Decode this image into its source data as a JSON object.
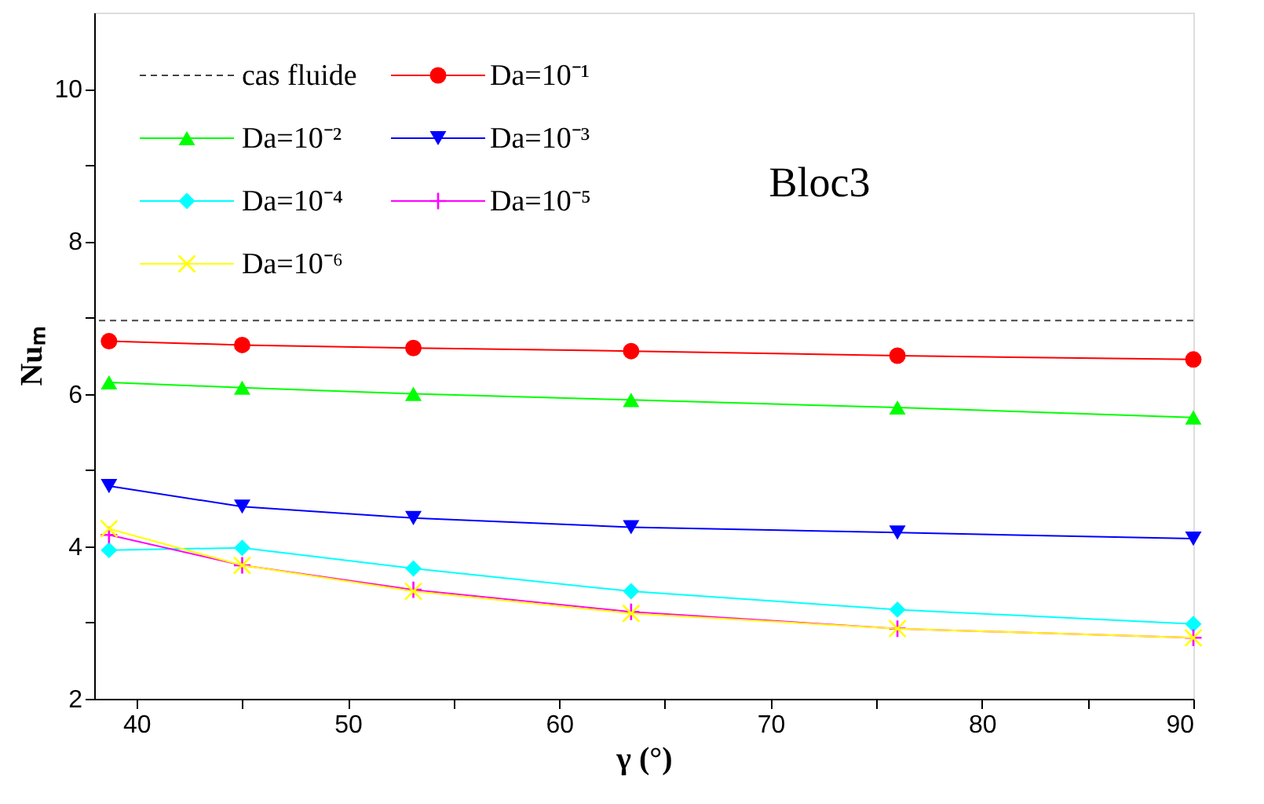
{
  "chart_data": {
    "type": "line",
    "xlabel": "γ (°)",
    "ylabel": "Nuₘ",
    "annotations": [
      "Bloc3"
    ],
    "x": [
      38.7,
      45,
      53.1,
      63.4,
      76,
      90
    ],
    "series": [
      {
        "name": "Da=10⁻¹",
        "color": "#ff0000",
        "marker": "circle",
        "values": [
          6.69,
          6.64,
          6.6,
          6.56,
          6.5,
          6.45
        ]
      },
      {
        "name": "Da=10⁻²",
        "color": "#00ff00",
        "marker": "triangle",
        "values": [
          6.15,
          6.08,
          6.0,
          5.92,
          5.82,
          5.69
        ]
      },
      {
        "name": "Da=10⁻³",
        "color": "#0000ff",
        "marker": "triangle-down",
        "values": [
          4.79,
          4.52,
          4.37,
          4.25,
          4.18,
          4.1
        ]
      },
      {
        "name": "Da=10⁻⁴",
        "color": "#00ffff",
        "marker": "diamond",
        "values": [
          3.95,
          3.98,
          3.71,
          3.41,
          3.17,
          2.98
        ]
      },
      {
        "name": "Da=10⁻⁵",
        "color": "#ff00ff",
        "marker": "cross",
        "values": [
          4.15,
          3.75,
          3.43,
          3.14,
          2.92,
          2.8
        ]
      },
      {
        "name": "Da=10⁻⁶",
        "color": "#ffff00",
        "marker": "x",
        "values": [
          4.23,
          3.75,
          3.41,
          3.12,
          2.92,
          2.8
        ]
      }
    ],
    "ref_lines": [
      {
        "axis": "y",
        "value": 6.96,
        "label": "cas fluide",
        "color": "#444444",
        "line_style": "dashed"
      }
    ],
    "xlim": [
      38,
      90
    ],
    "xticks": [
      40,
      {
        "value": 45,
        "label": null
      },
      50,
      {
        "value": 55,
        "label": null
      },
      60,
      {
        "value": 65,
        "label": null
      },
      70,
      {
        "value": 75,
        "label": null
      },
      80,
      {
        "value": 85,
        "label": null
      },
      90
    ],
    "ylim": [
      2,
      11
    ],
    "yticks": [
      2,
      {
        "value": 3,
        "label": null
      },
      4,
      {
        "value": 5,
        "label": null
      },
      6,
      {
        "value": 7,
        "label": null
      },
      8,
      {
        "value": 9,
        "label": null
      },
      10
    ],
    "grid": false,
    "legend": "top left"
  }
}
